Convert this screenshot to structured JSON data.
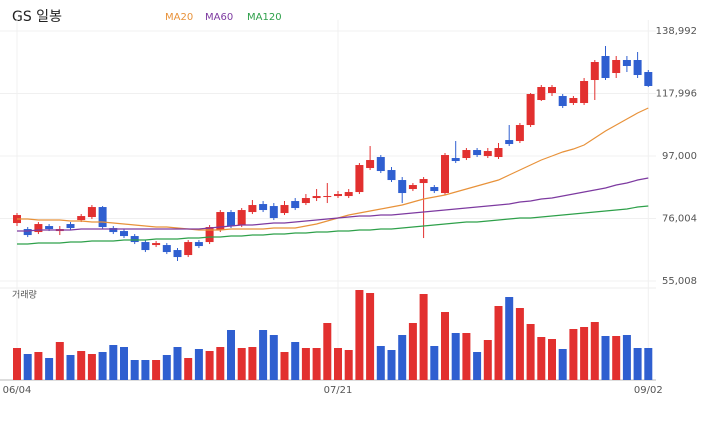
{
  "chart_data": {
    "type": "candlestick",
    "title": "GS 일봉",
    "volume_label": "거래량",
    "up_color": "#e2302f",
    "down_color": "#2f5fd0",
    "categories": [
      "06/04",
      null,
      null,
      null,
      null,
      null,
      null,
      null,
      null,
      null,
      null,
      null,
      null,
      null,
      null,
      null,
      null,
      null,
      null,
      null,
      null,
      null,
      null,
      null,
      null,
      null,
      null,
      null,
      null,
      null,
      "07/21",
      null,
      null,
      null,
      null,
      null,
      null,
      null,
      null,
      null,
      null,
      null,
      null,
      null,
      null,
      null,
      null,
      null,
      null,
      null,
      null,
      null,
      null,
      null,
      null,
      null,
      null,
      null,
      null,
      "09/02"
    ],
    "open": [
      74480,
      72464,
      71456,
      73472,
      71792,
      74144,
      75488,
      76496,
      79856,
      72800,
      71792,
      70112,
      68096,
      67088,
      67088,
      65408,
      63728,
      68096,
      68096,
      72128,
      78176,
      73808,
      78176,
      80864,
      80192,
      77840,
      81872,
      81200,
      82880,
      83216,
      83552,
      83552,
      84896,
      92960,
      96656,
      92288,
      88928,
      85904,
      87920,
      86576,
      84560,
      96320,
      96320,
      99008,
      96992,
      96656,
      102368,
      102032,
      107408,
      115808,
      118160,
      117152,
      114800,
      114800,
      122528,
      130592,
      124880,
      129248,
      129248,
      125216
    ],
    "high": [
      77840,
      73136,
      74816,
      74144,
      73472,
      74816,
      77504,
      80528,
      80192,
      73472,
      72464,
      70784,
      68768,
      68432,
      67760,
      66080,
      68768,
      68768,
      73808,
      78848,
      78848,
      79520,
      82208,
      81872,
      81200,
      81872,
      82880,
      84224,
      85904,
      87920,
      85232,
      85904,
      94640,
      100352,
      97328,
      93296,
      89936,
      87920,
      89936,
      87248,
      98000,
      102032,
      99680,
      99680,
      99680,
      101360,
      107408,
      108080,
      118160,
      120848,
      120848,
      117824,
      117152,
      123200,
      129248,
      133952,
      130592,
      130592,
      131936,
      125888
    ],
    "low": [
      73472,
      69776,
      70784,
      71792,
      70448,
      72128,
      74816,
      75824,
      72464,
      70784,
      69440,
      67424,
      64736,
      66416,
      64064,
      61712,
      63056,
      66080,
      67424,
      71456,
      72800,
      73136,
      77504,
      78176,
      75488,
      77168,
      78848,
      80528,
      81872,
      81200,
      82880,
      82880,
      84224,
      92288,
      91280,
      88256,
      81200,
      85232,
      69440,
      84560,
      83888,
      94640,
      95648,
      96656,
      96320,
      95984,
      100352,
      101360,
      106736,
      115472,
      117152,
      113120,
      114128,
      114128,
      115808,
      122528,
      123200,
      125216,
      123200,
      120176
    ],
    "close": [
      77168,
      70448,
      74144,
      72464,
      72464,
      72800,
      76832,
      79856,
      73136,
      71456,
      70112,
      68096,
      65408,
      67760,
      64736,
      63056,
      68096,
      66752,
      73136,
      78176,
      73472,
      78848,
      80528,
      78848,
      76160,
      80528,
      79520,
      82880,
      83552,
      83552,
      84224,
      84896,
      93968,
      95648,
      91952,
      88928,
      84560,
      87248,
      89264,
      85232,
      97328,
      95312,
      99008,
      97328,
      98672,
      99680,
      101024,
      107408,
      117824,
      120176,
      120176,
      113792,
      116480,
      122192,
      128576,
      123200,
      129248,
      127232,
      124208,
      120512
    ],
    "volume": [
      320000,
      260000,
      280000,
      220000,
      380000,
      250000,
      290000,
      260000,
      280000,
      350000,
      330000,
      200000,
      200000,
      200000,
      250000,
      330000,
      220000,
      310000,
      290000,
      330000,
      500000,
      320000,
      330000,
      500000,
      450000,
      280000,
      380000,
      320000,
      320000,
      570000,
      320000,
      300000,
      900000,
      870000,
      340000,
      300000,
      450000,
      570000,
      860000,
      340000,
      680000,
      470000,
      470000,
      280000,
      400000,
      740000,
      830000,
      720000,
      560000,
      430000,
      410000,
      310000,
      510000,
      530000,
      580000,
      440000,
      440000,
      450000,
      320000,
      320000
    ],
    "vlim": [
      0,
      900000
    ],
    "series": [
      {
        "name": "MA20",
        "color": "#e8923a",
        "values": [
          75824,
          75824,
          75488,
          75488,
          75488,
          75152,
          75152,
          74816,
          74816,
          74480,
          74144,
          73808,
          73472,
          73136,
          73136,
          72800,
          72464,
          72128,
          72128,
          72128,
          72464,
          72464,
          72464,
          72464,
          72800,
          72800,
          72800,
          73472,
          74144,
          75152,
          76160,
          77168,
          77840,
          78512,
          79184,
          79856,
          80528,
          81536,
          82544,
          83216,
          83888,
          84896,
          85904,
          86912,
          87920,
          88928,
          90608,
          92288,
          93968,
          95648,
          96992,
          98336,
          99344,
          100688,
          103040,
          105392,
          107408,
          109424,
          111440,
          113120
        ]
      },
      {
        "name": "MA60",
        "color": "#7d3aa0",
        "values": [
          71792,
          71792,
          72128,
          72128,
          72128,
          72128,
          72464,
          72464,
          72464,
          72464,
          72464,
          72464,
          72464,
          72464,
          72464,
          72464,
          72464,
          72464,
          72800,
          73136,
          73472,
          73808,
          73808,
          74144,
          74480,
          74480,
          74816,
          75152,
          75488,
          75824,
          76160,
          76496,
          76832,
          76832,
          77168,
          77168,
          77504,
          77840,
          78176,
          78512,
          78848,
          79184,
          79520,
          79856,
          80192,
          80528,
          80864,
          81536,
          81872,
          82544,
          82880,
          83552,
          84224,
          84896,
          85568,
          86240,
          87248,
          87920,
          88928,
          89600
        ]
      },
      {
        "name": "MA120",
        "color": "#2ea04a",
        "values": [
          67424,
          67424,
          67760,
          67760,
          67760,
          68096,
          68096,
          68432,
          68432,
          68432,
          68768,
          68768,
          68768,
          69104,
          69104,
          69104,
          69440,
          69440,
          69776,
          69776,
          70112,
          70112,
          70448,
          70448,
          70784,
          70784,
          71120,
          71120,
          71456,
          71456,
          71792,
          71792,
          72128,
          72128,
          72464,
          72464,
          72800,
          73136,
          73472,
          73808,
          74144,
          74480,
          74816,
          74816,
          75152,
          75488,
          75824,
          76160,
          76160,
          76496,
          76832,
          77168,
          77504,
          77840,
          78176,
          78512,
          78848,
          79184,
          79856,
          80192
        ]
      }
    ],
    "ylim": [
      55008,
      138992
    ],
    "yticks": [
      {
        "value": 138992,
        "label": "138,992"
      },
      {
        "value": 117996,
        "label": "117,996"
      },
      {
        "value": 97000,
        "label": "97,000"
      },
      {
        "value": 76004,
        "label": "76,004"
      },
      {
        "value": 55008,
        "label": "55,008"
      }
    ],
    "grid": true
  }
}
